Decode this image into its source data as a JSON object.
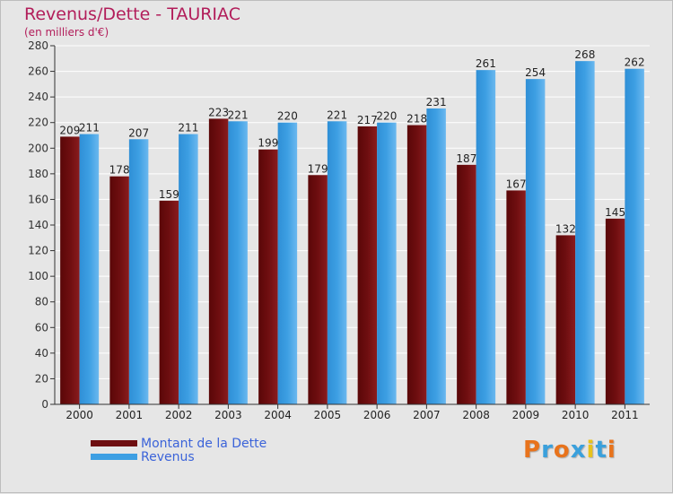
{
  "title": "Revenus/Dette - TAURIAC",
  "subtitle": "(en milliers d'€)",
  "brand": "Proxiti",
  "colors": {
    "dette": "#6e0e10",
    "revenus": "#3d9fe3",
    "title": "#b21d5a",
    "legend_text": "#3b63d9",
    "grid": "#ffffff",
    "plot_bg": "#e6e6e6"
  },
  "chart_data": {
    "type": "bar",
    "title": "Revenus/Dette - TAURIAC",
    "subtitle": "(en milliers d'€)",
    "categories": [
      "2000",
      "2001",
      "2002",
      "2003",
      "2004",
      "2005",
      "2006",
      "2007",
      "2008",
      "2009",
      "2010",
      "2011"
    ],
    "series": [
      {
        "name": "Montant de la Dette",
        "values": [
          209,
          178,
          159,
          223,
          199,
          179,
          217,
          218,
          187,
          167,
          132,
          145
        ]
      },
      {
        "name": "Revenus",
        "values": [
          211,
          207,
          211,
          221,
          220,
          221,
          220,
          231,
          261,
          254,
          268,
          262
        ]
      }
    ],
    "ylim": [
      0,
      280
    ],
    "yticks": [
      0,
      20,
      40,
      60,
      80,
      100,
      120,
      140,
      160,
      180,
      200,
      220,
      240,
      260,
      280
    ],
    "grid": true,
    "legend_position": "bottom-left"
  }
}
